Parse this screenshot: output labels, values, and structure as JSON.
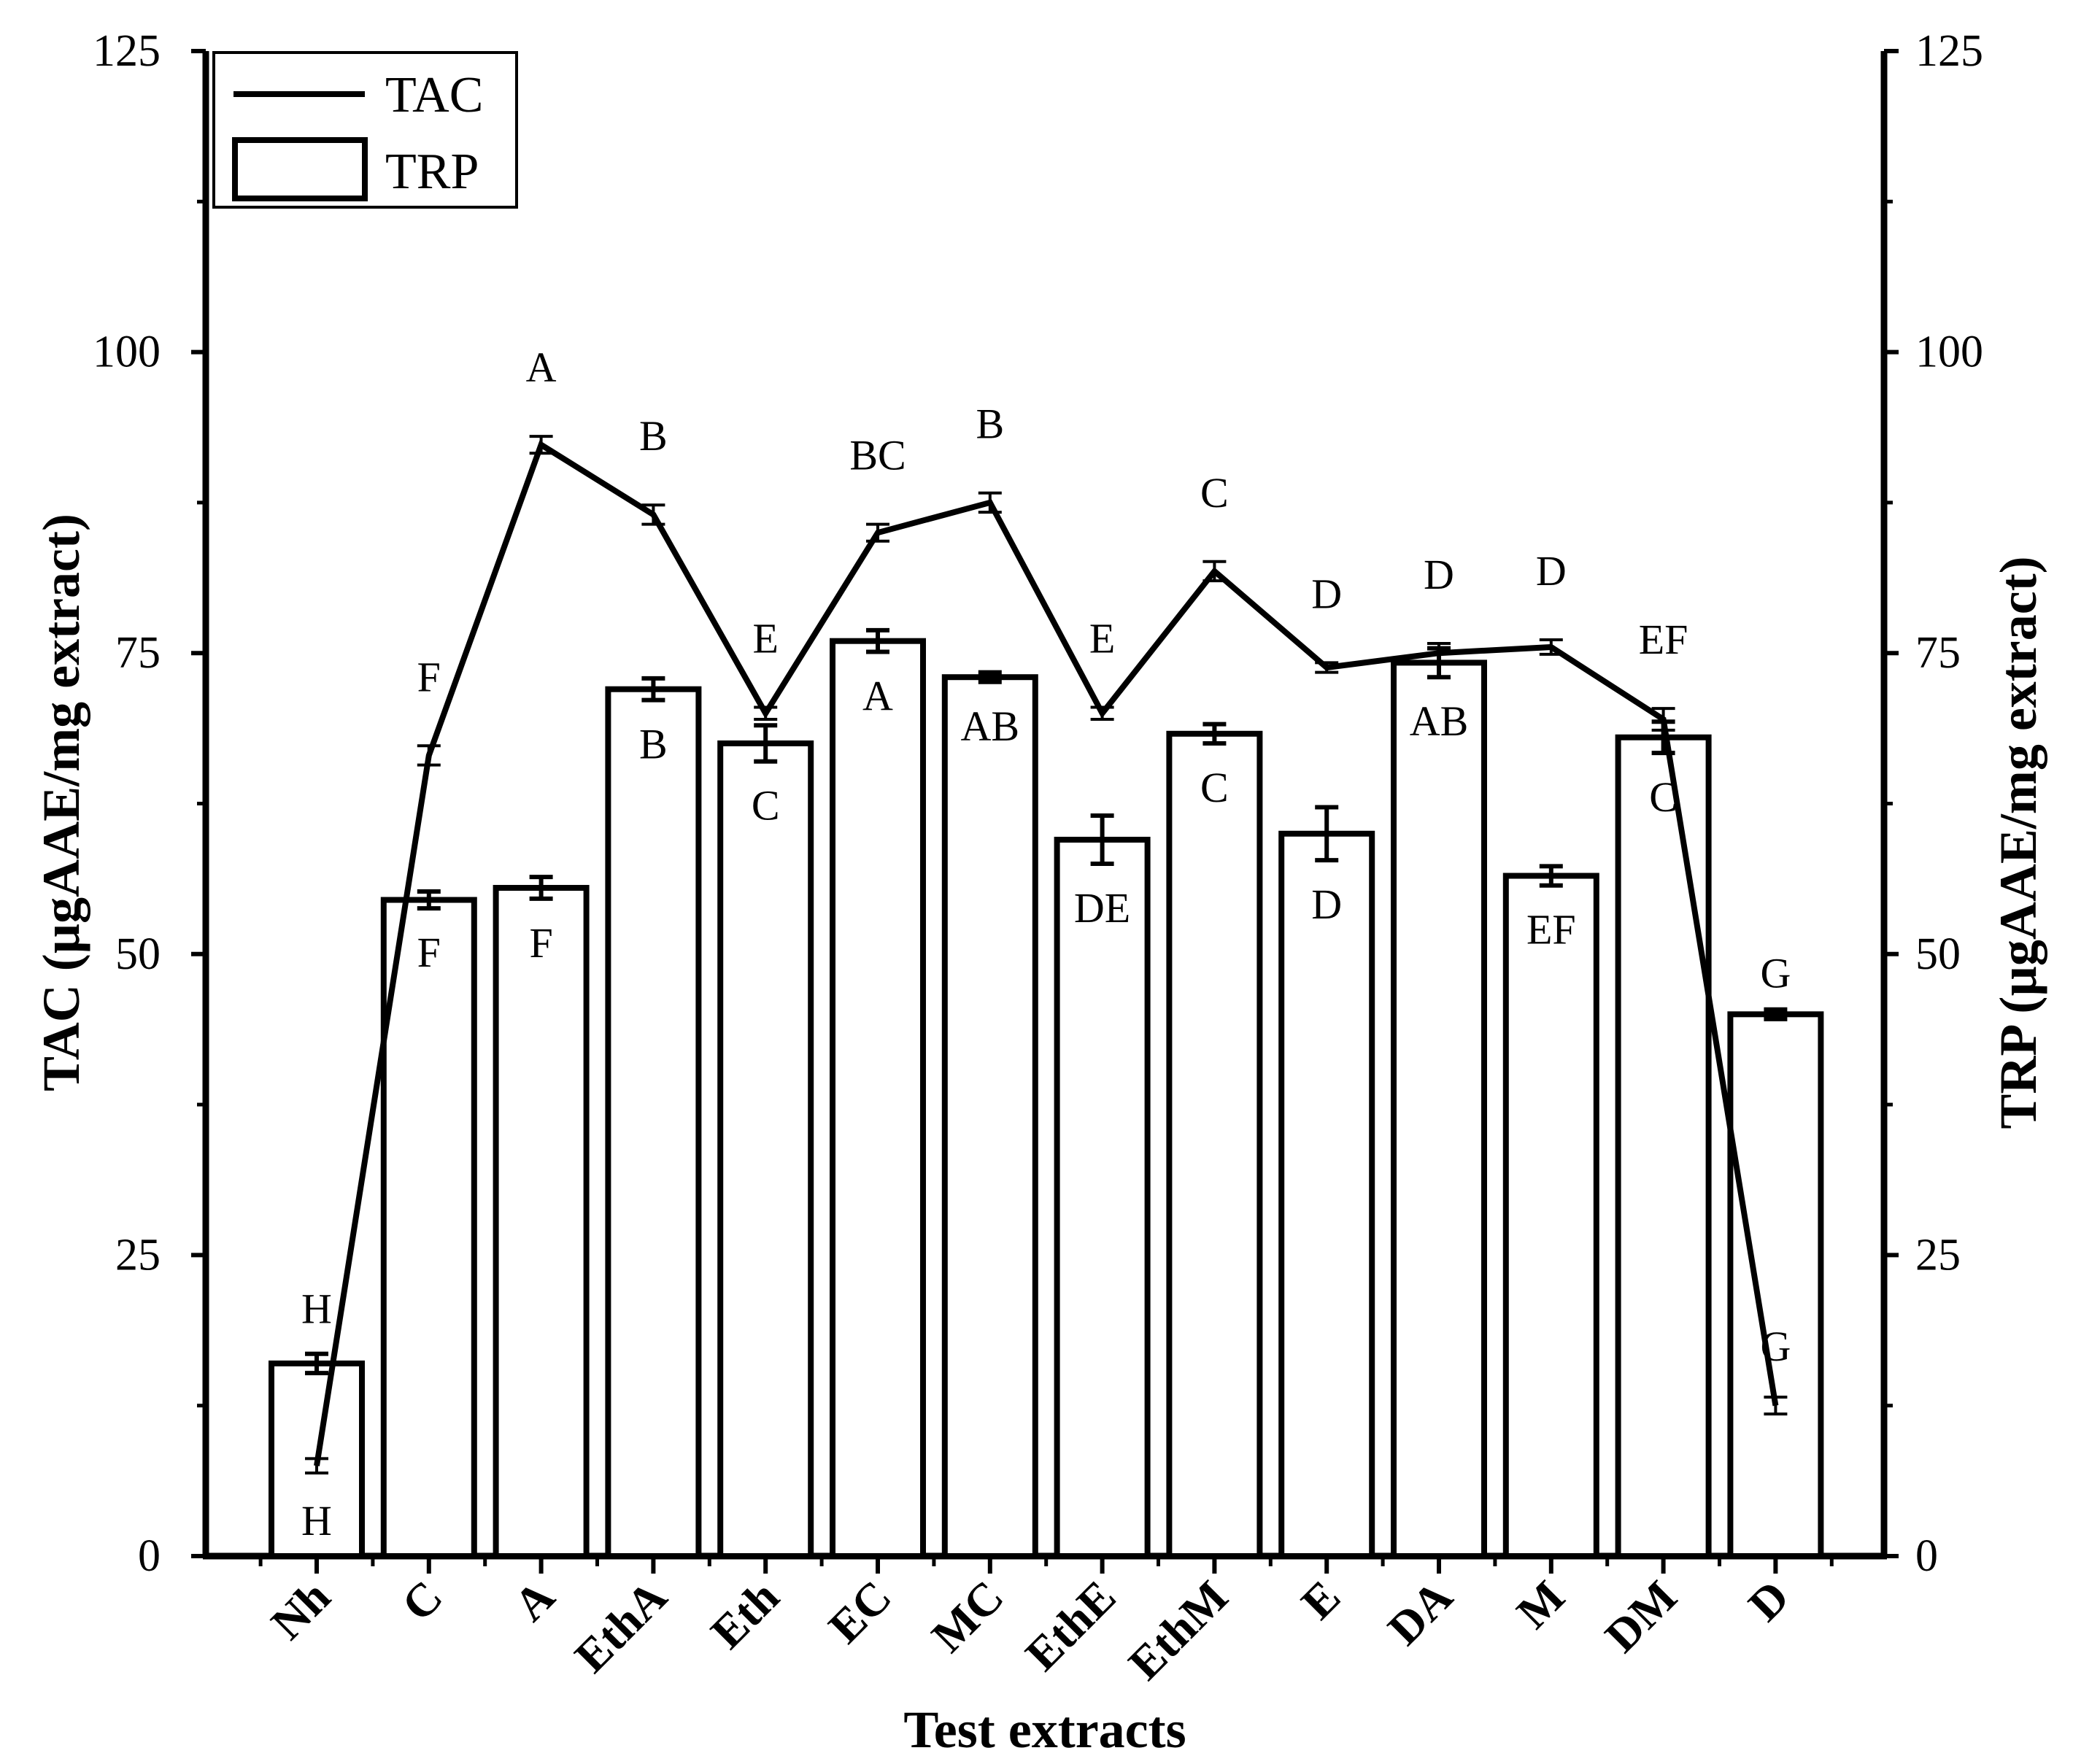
{
  "chart_data": {
    "type": "bar+line",
    "xlabel": "Test extracts",
    "ylabel_left": "TAC (µgAAE/mg extract)",
    "ylabel_right": "TRP (µgAAE/mg extract)",
    "ylim": [
      0,
      125
    ],
    "yticks": [
      0,
      25,
      50,
      75,
      100,
      125
    ],
    "categories": [
      "Nh",
      "C",
      "A",
      "EthA",
      "Eth",
      "EC",
      "MC",
      "EthE",
      "EthM",
      "E",
      "DA",
      "M",
      "DM",
      "D"
    ],
    "legend": {
      "position": "top-left",
      "entries": [
        "TAC",
        "TRP"
      ]
    },
    "series": [
      {
        "name": "TRP",
        "type": "bar",
        "axis": "right",
        "values": [
          16,
          54.5,
          55.5,
          72,
          67.5,
          76,
          73,
          59.5,
          68.3,
          60,
          74.2,
          56.5,
          68,
          45
        ],
        "errors": [
          0.8,
          0.7,
          0.9,
          0.9,
          1.5,
          0.9,
          0.4,
          2.0,
          0.8,
          2.2,
          1.2,
          0.8,
          1.3,
          0.4
        ],
        "sig_labels": [
          "H",
          "F",
          "F",
          "B",
          "C",
          "A",
          "AB",
          "DE",
          "C",
          "D",
          "AB",
          "EF",
          "C",
          "G"
        ]
      },
      {
        "name": "TAC",
        "type": "line",
        "axis": "left",
        "values": [
          7.5,
          66.5,
          92.3,
          86.5,
          70,
          85,
          87.5,
          70,
          81.8,
          73.8,
          75,
          75.5,
          69.5,
          12.5
        ],
        "errors": [
          0.6,
          0.8,
          0.7,
          0.8,
          0.5,
          0.7,
          0.8,
          0.5,
          0.8,
          0.4,
          0.8,
          0.6,
          0.9,
          0.7
        ],
        "sig_labels": [
          "H",
          "F",
          "A",
          "B",
          "E",
          "BC",
          "B",
          "E",
          "C",
          "D",
          "D",
          "D",
          "EF",
          "G"
        ]
      }
    ]
  }
}
